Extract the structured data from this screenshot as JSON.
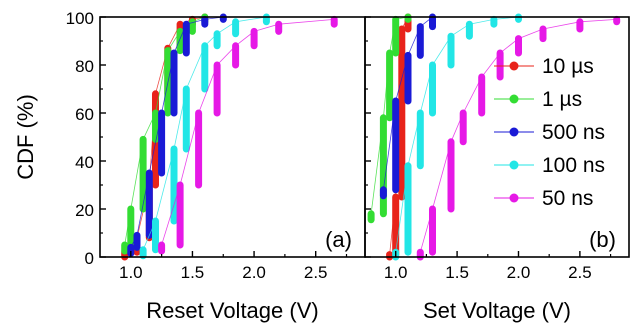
{
  "chart_data": [
    {
      "type": "scatter",
      "panel_label": "(a)",
      "xlabel": "Reset Voltage (V)",
      "ylabel": "CDF (%)",
      "xlim": [
        0.75,
        2.9
      ],
      "ylim": [
        0,
        100
      ],
      "x_ticks": [
        "1.0",
        "1.5",
        "2.0",
        "2.5"
      ],
      "y_ticks": [
        "0",
        "20",
        "40",
        "60",
        "80",
        "100"
      ],
      "series": [
        {
          "name": "10 µs",
          "color": "#e8231a",
          "points": [
            [
              0.95,
              2
            ],
            [
              1.05,
              8
            ],
            [
              1.15,
              30
            ],
            [
              1.2,
              68
            ],
            [
              1.3,
              87
            ],
            [
              1.4,
              97
            ],
            [
              1.5,
              99
            ],
            [
              1.6,
              100
            ]
          ]
        },
        {
          "name": "1 µs",
          "color": "#33dd33",
          "points": [
            [
              0.95,
              5
            ],
            [
              1.0,
              20
            ],
            [
              1.1,
              49
            ],
            [
              1.2,
              60
            ],
            [
              1.3,
              86
            ],
            [
              1.4,
              94
            ],
            [
              1.5,
              98
            ],
            [
              1.6,
              100
            ]
          ]
        },
        {
          "name": "500 ns",
          "color": "#1a1ad6",
          "points": [
            [
              1.0,
              4
            ],
            [
              1.05,
              9
            ],
            [
              1.15,
              35
            ],
            [
              1.25,
              60
            ],
            [
              1.35,
              85
            ],
            [
              1.45,
              97
            ],
            [
              1.6,
              99
            ],
            [
              1.75,
              100
            ]
          ]
        },
        {
          "name": "100 ns",
          "color": "#22e6e6",
          "points": [
            [
              1.1,
              3
            ],
            [
              1.2,
              15
            ],
            [
              1.35,
              45
            ],
            [
              1.45,
              70
            ],
            [
              1.6,
              88
            ],
            [
              1.7,
              93
            ],
            [
              1.85,
              98
            ],
            [
              2.1,
              100
            ]
          ]
        },
        {
          "name": "50 ns",
          "color": "#e619e6",
          "points": [
            [
              1.25,
              5
            ],
            [
              1.4,
              30
            ],
            [
              1.55,
              60
            ],
            [
              1.7,
              80
            ],
            [
              1.85,
              88
            ],
            [
              2.0,
              94
            ],
            [
              2.2,
              97
            ],
            [
              2.65,
              99
            ]
          ]
        }
      ]
    },
    {
      "type": "scatter",
      "panel_label": "(b)",
      "xlabel": "Set Voltage (V)",
      "ylabel": "",
      "xlim": [
        0.75,
        2.9
      ],
      "ylim": [
        0,
        100
      ],
      "x_ticks": [
        "1.0",
        "1.5",
        "2.0",
        "2.5"
      ],
      "y_ticks": [
        "0",
        "20",
        "40",
        "60",
        "80",
        "100"
      ],
      "series": [
        {
          "name": "10 µs",
          "color": "#e8231a",
          "points": [
            [
              0.95,
              1
            ],
            [
              1.0,
              25
            ],
            [
              1.05,
              95
            ],
            [
              1.1,
              100
            ]
          ]
        },
        {
          "name": "1 µs",
          "color": "#33dd33",
          "points": [
            [
              0.8,
              18
            ],
            [
              0.9,
              58
            ],
            [
              0.95,
              85
            ],
            [
              1.0,
              99
            ],
            [
              1.1,
              100
            ]
          ]
        },
        {
          "name": "500 ns",
          "color": "#1a1ad6",
          "points": [
            [
              0.9,
              28
            ],
            [
              1.0,
              65
            ],
            [
              1.1,
              84
            ],
            [
              1.2,
              96
            ],
            [
              1.3,
              100
            ]
          ]
        },
        {
          "name": "100 ns",
          "color": "#22e6e6",
          "points": [
            [
              1.0,
              2
            ],
            [
              1.1,
              38
            ],
            [
              1.2,
              60
            ],
            [
              1.3,
              80
            ],
            [
              1.45,
              92
            ],
            [
              1.6,
              97
            ],
            [
              1.8,
              99
            ],
            [
              2.0,
              100
            ]
          ]
        },
        {
          "name": "50 ns",
          "color": "#e619e6",
          "points": [
            [
              1.2,
              2
            ],
            [
              1.3,
              20
            ],
            [
              1.45,
              48
            ],
            [
              1.55,
              60
            ],
            [
              1.7,
              75
            ],
            [
              1.85,
              85
            ],
            [
              2.0,
              91
            ],
            [
              2.2,
              95
            ],
            [
              2.5,
              98
            ],
            [
              2.8,
              99
            ]
          ]
        }
      ]
    }
  ],
  "legend": {
    "placement": "top-right",
    "entries": [
      "10 µs",
      "1 µs",
      "500 ns",
      "100 ns",
      "50 ns"
    ]
  }
}
